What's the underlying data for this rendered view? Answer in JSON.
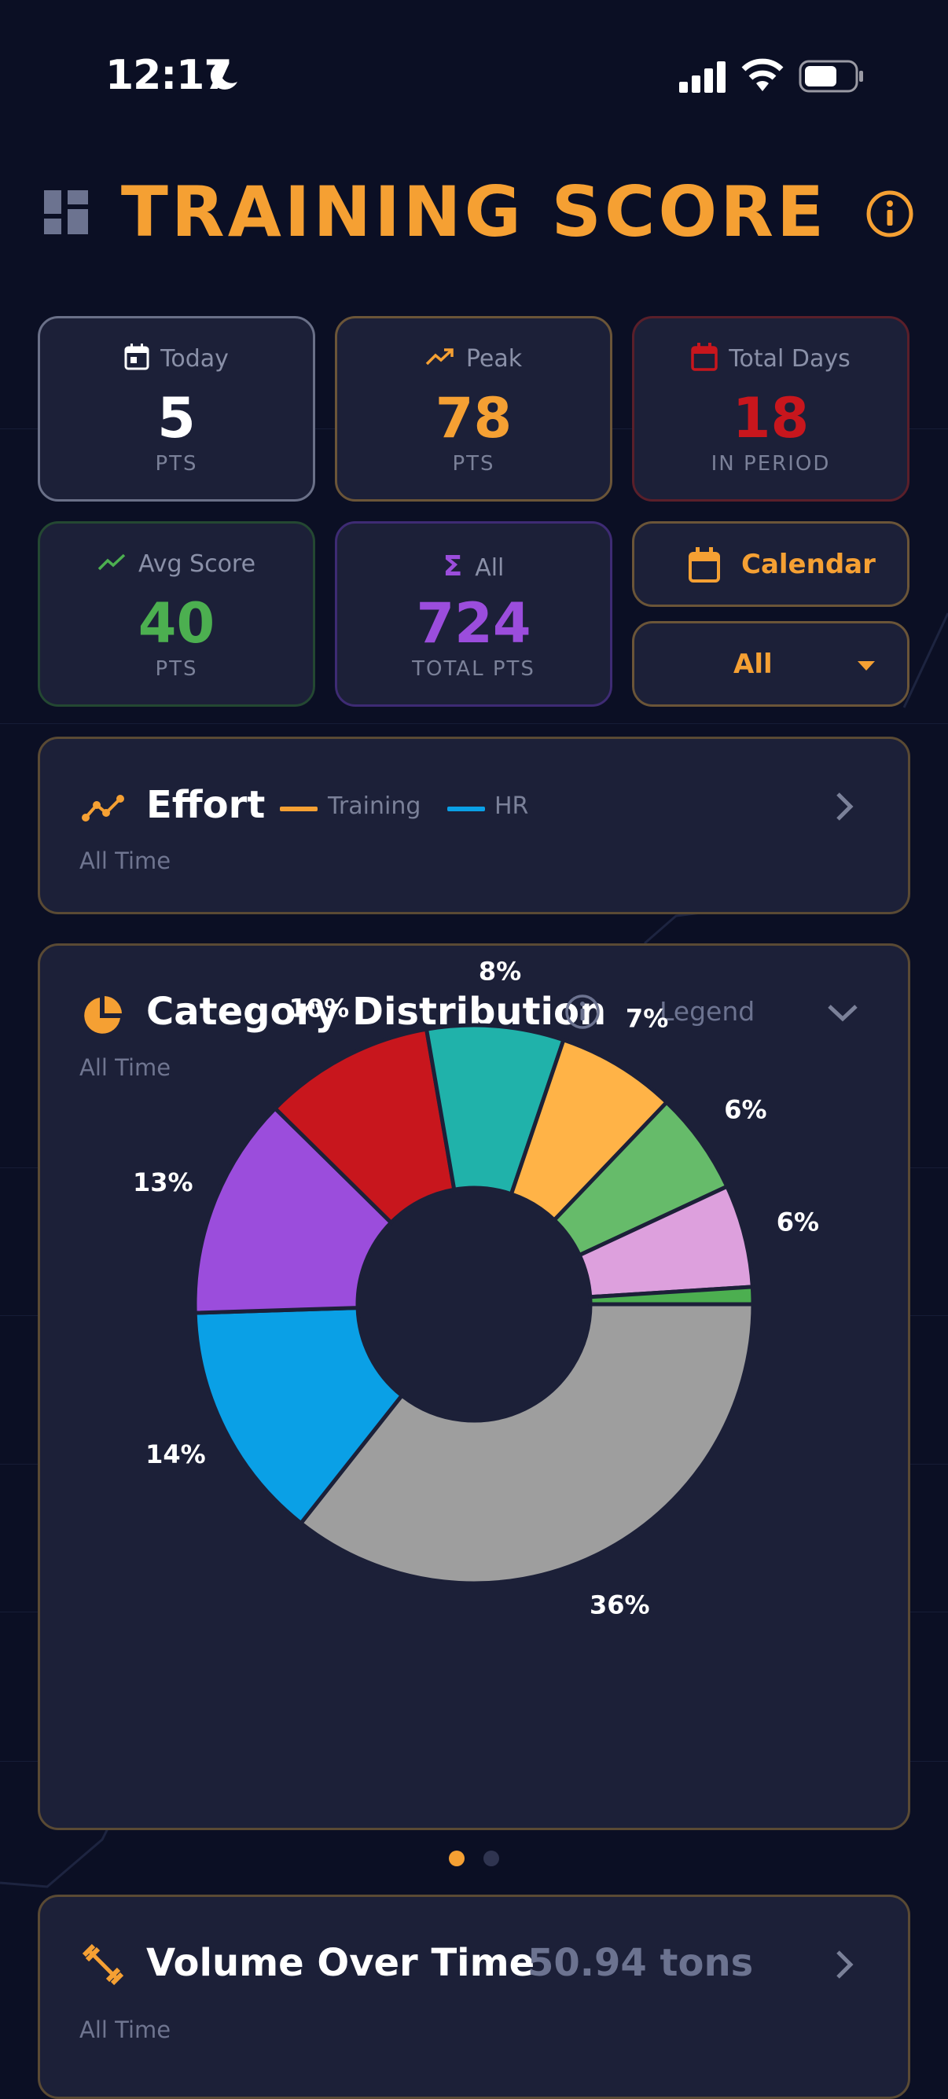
{
  "status_bar": {
    "time": "12:17"
  },
  "header": {
    "title": "TRAINING SCORE"
  },
  "stats": {
    "today": {
      "label": "Today",
      "value": "5",
      "unit": "PTS"
    },
    "peak": {
      "label": "Peak",
      "value": "78",
      "unit": "PTS"
    },
    "total_days": {
      "label": "Total Days",
      "value": "18",
      "unit": "IN PERIOD"
    },
    "avg_score": {
      "label": "Avg Score",
      "value": "40",
      "unit": "PTS"
    },
    "all": {
      "label": "All",
      "value": "724",
      "unit": "TOTAL PTS"
    }
  },
  "controls": {
    "calendar_label": "Calendar",
    "filter_value": "All"
  },
  "effort": {
    "title": "Effort",
    "subtitle": "All Time",
    "legend": [
      {
        "label": "Training",
        "color": "#f5a033"
      },
      {
        "label": "HR",
        "color": "#0aa0e6"
      }
    ]
  },
  "category": {
    "title": "Category Distribution",
    "subtitle": "All Time",
    "legend_toggle": "Legend"
  },
  "pager": {
    "count": 2,
    "active": 0
  },
  "volume": {
    "title": "Volume Over Time",
    "value": "50.94 tons",
    "subtitle": "All Time"
  },
  "colors": {
    "accent": "#f5a033",
    "background": "#0b0f24",
    "card": "#1c2038",
    "red": "#c8161d",
    "green": "#4caf50",
    "purple": "#9b4ddc"
  },
  "chart_data": {
    "type": "pie",
    "variant": "donut",
    "labels": [
      "36%",
      "14%",
      "13%",
      "10%",
      "8%",
      "7%",
      "6%",
      "6%",
      ""
    ],
    "values": [
      36,
      14,
      13,
      10,
      8,
      7,
      6,
      6,
      1
    ],
    "colors": [
      "#9e9e9e",
      "#0aa0e6",
      "#9b4ddc",
      "#c8161d",
      "#20b2aa",
      "#ffb347",
      "#66bb6a",
      "#dda0dd",
      "#4caf50"
    ]
  }
}
